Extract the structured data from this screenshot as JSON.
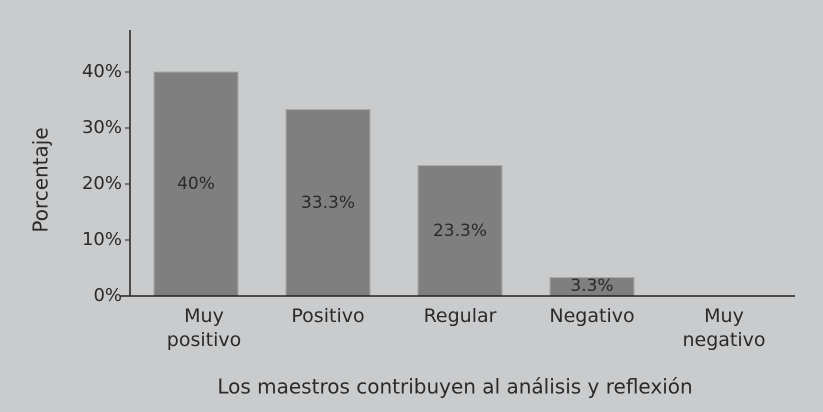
{
  "chart_data": {
    "type": "bar",
    "x_label": "Los maestros contribuyen al análisis y reflexión",
    "y_label": "Porcentaje",
    "categories": [
      "Muy positivo",
      "Positivo",
      "Regular",
      "Negativo",
      "Muy negativo"
    ],
    "values": [
      40,
      33.3,
      23.3,
      3.3,
      0
    ],
    "value_labels": [
      "40%",
      "33.3%",
      "23.3%",
      "3.3%",
      null
    ],
    "color": "#7f7f7f",
    "ylim": [
      0,
      47.5
    ],
    "yticks": [
      {
        "value": 0,
        "label": "0%"
      },
      {
        "value": 10,
        "label": "10%"
      },
      {
        "value": 20,
        "label": "20%"
      },
      {
        "value": 30,
        "label": "30%"
      },
      {
        "value": 40,
        "label": "40%"
      }
    ]
  }
}
